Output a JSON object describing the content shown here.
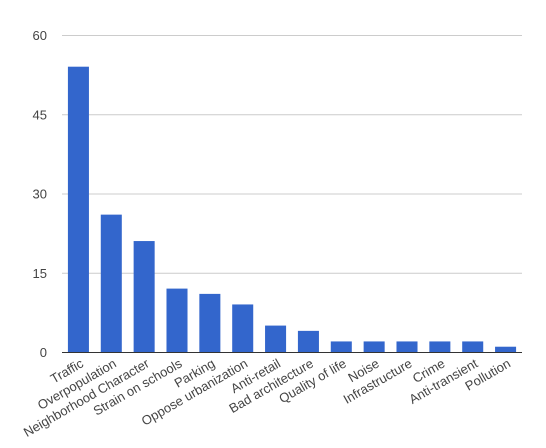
{
  "chart_data": {
    "type": "bar",
    "categories": [
      "Traffic",
      "Overpopulation",
      "Neighborhood Character",
      "Strain on schools",
      "Parking",
      "Oppose urbanization",
      "Anti-retail",
      "Bad architecture",
      "Quality of life",
      "Noise",
      "Infrastructure",
      "Crime",
      "Anti-transient",
      "Pollution"
    ],
    "values": [
      54,
      26,
      21,
      12,
      11,
      9,
      5,
      4,
      2,
      2,
      2,
      2,
      2,
      1
    ],
    "color": "#3366cc",
    "ylim": [
      0,
      60
    ],
    "yticks": [
      0,
      15,
      30,
      45,
      60
    ],
    "grid": true
  }
}
